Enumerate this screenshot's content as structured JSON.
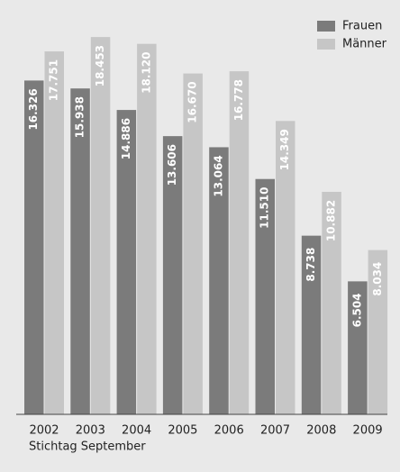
{
  "chart_data": {
    "type": "bar",
    "x_label": "Stichtag September",
    "categories": [
      "2002",
      "2003",
      "2004",
      "2005",
      "2006",
      "2007",
      "2008",
      "2009"
    ],
    "series": [
      {
        "name": "Frauen",
        "color": "#7b7b7b",
        "values": [
          16326,
          15938,
          14886,
          13606,
          13064,
          11510,
          8738,
          6504
        ],
        "value_labels": [
          "16.326",
          "15.938",
          "14.886",
          "13.606",
          "13.064",
          "11.510",
          "8.738",
          "6.504"
        ]
      },
      {
        "name": "Männer",
        "color": "#c6c6c6",
        "values": [
          17751,
          18453,
          18120,
          16670,
          16778,
          14349,
          10882,
          8034
        ],
        "value_labels": [
          "17.751",
          "18.453",
          "18.120",
          "16.670",
          "16.778",
          "14.349",
          "10.882",
          "8.034"
        ]
      }
    ],
    "ylim": [
      0,
      20000
    ],
    "legend": "upper right"
  }
}
